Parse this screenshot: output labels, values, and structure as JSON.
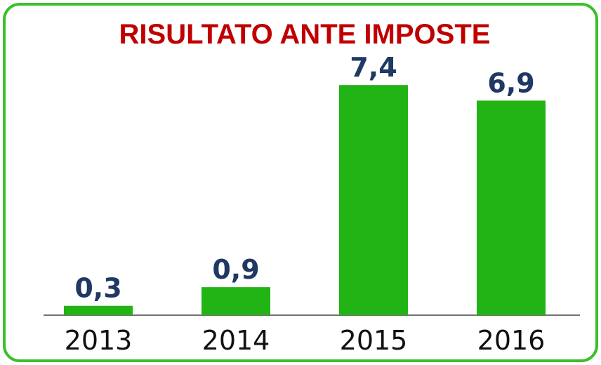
{
  "chart_data": {
    "type": "bar",
    "title": "RISULTATO ANTE IMPOSTE",
    "categories": [
      "2013",
      "2014",
      "2015",
      "2016"
    ],
    "values": [
      0.3,
      0.9,
      7.4,
      6.9
    ],
    "value_labels": [
      "0,3",
      "0,9",
      "7,4",
      "6,9"
    ],
    "color": "#22b314"
  }
}
